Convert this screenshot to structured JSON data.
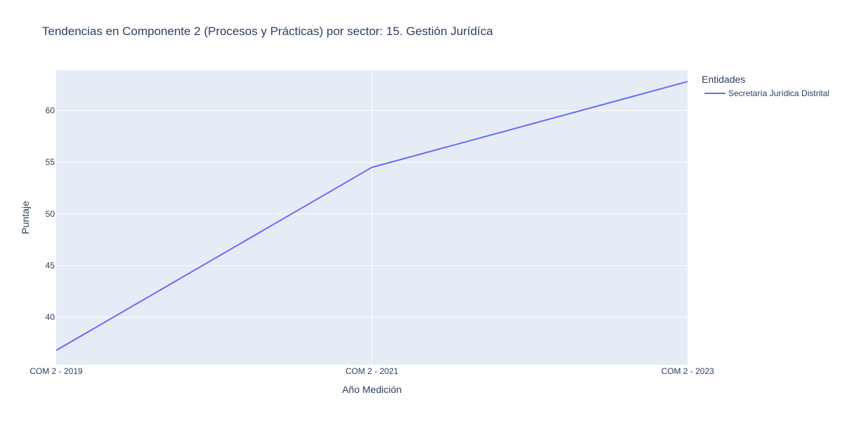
{
  "chart_data": {
    "type": "line",
    "title": "Tendencias en Componente 2 (Procesos y Prácticas) por sector: 15. Gestión Jurídíca",
    "xlabel": "Año Medición",
    "ylabel": "Puntaje",
    "categories": [
      "COM 2 - 2019",
      "COM 2 - 2021",
      "COM 2 - 2023"
    ],
    "ylim": [
      35.4,
      63.9
    ],
    "yticks": [
      40,
      45,
      50,
      55,
      60
    ],
    "grid": true,
    "legend": {
      "title": "Entidades",
      "placement": "right"
    },
    "series": [
      {
        "name": "Secretaría Jurídica Distrital",
        "values": [
          36.8,
          54.5,
          62.8
        ],
        "color": "#636efa"
      }
    ],
    "colors": {
      "plot_background": "#e5ecf6",
      "grid": "#ffffff",
      "text": "#2a3f5f"
    }
  }
}
